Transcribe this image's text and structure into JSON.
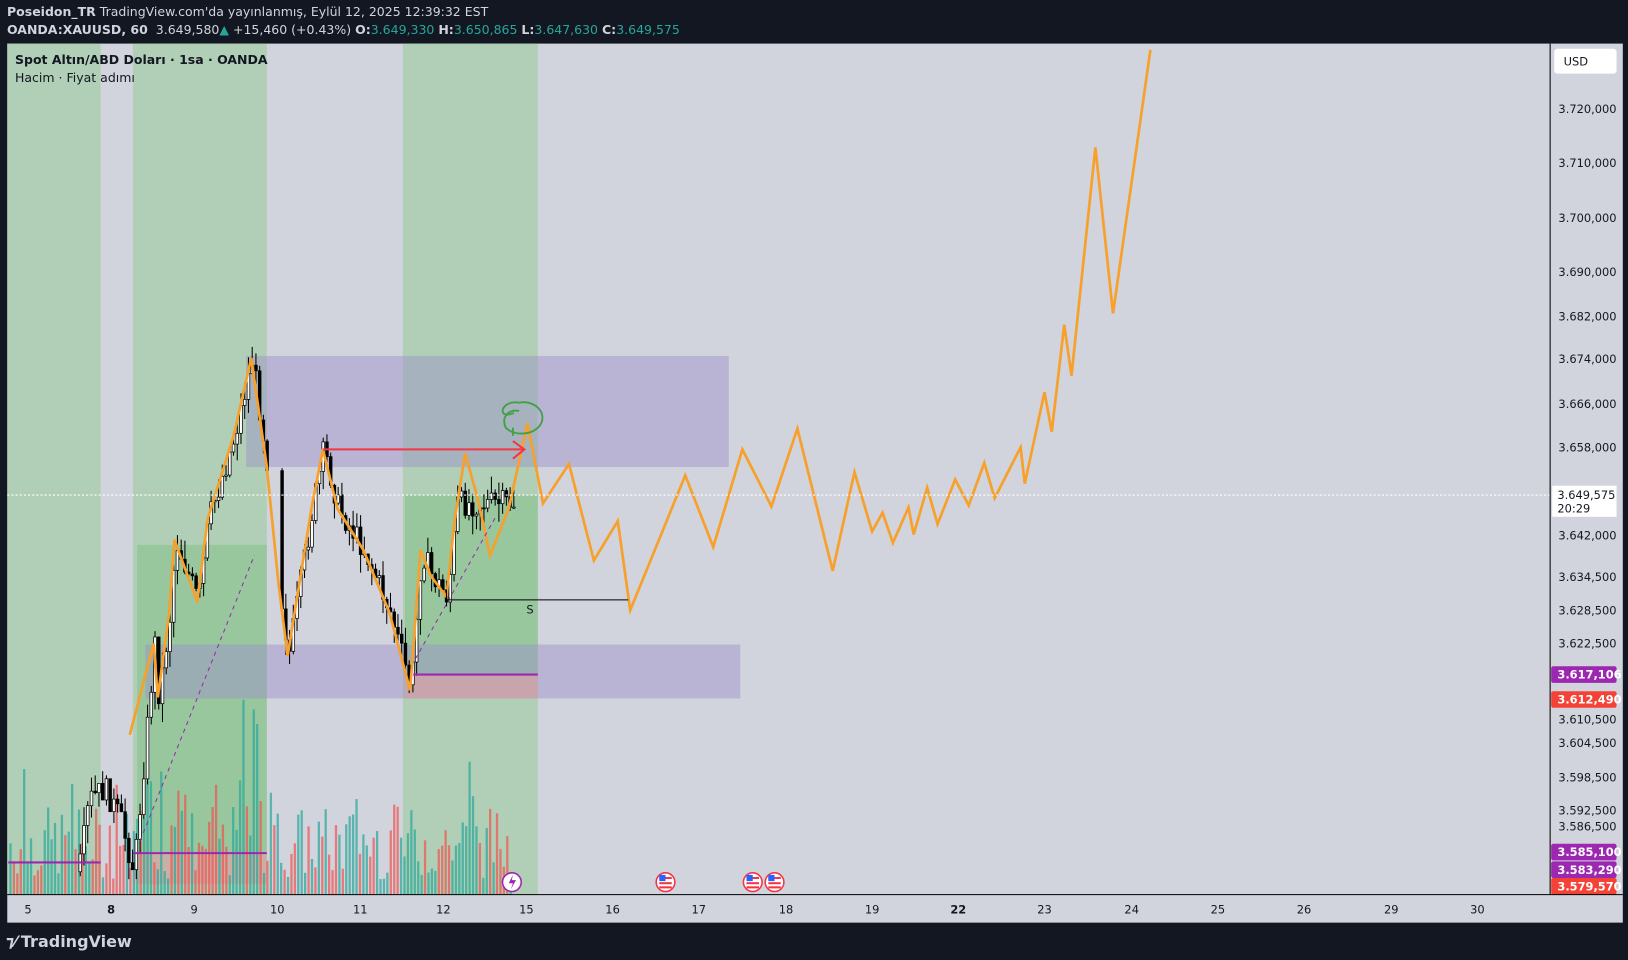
{
  "header": {
    "author": "Poseidon_TR",
    "published": "TradingView.com'da yayınlanmış, Eylül 12, 2025 12:39:32 EST"
  },
  "ticker": {
    "symbol": "OANDA:XAUUSD, 60",
    "last": "3.649,580",
    "change": "+15,460 (+0.43%)",
    "o_label": "O:",
    "open": "3.649,330",
    "h_label": "H:",
    "high": "3.650,865",
    "l_label": "L:",
    "low": "3.647,630",
    "c_label": "C:",
    "close": "3.649,575"
  },
  "legend": {
    "title": "Spot Altın/ABD Doları · 1sa · OANDA",
    "indicators": "Hacim · Fiyat adımı"
  },
  "price_axis": {
    "currency": "USD",
    "ticks": [
      "3.720,000",
      "3.710,000",
      "3.700,000",
      "3.690,000",
      "3.682,000",
      "3.674,000",
      "3.666,000",
      "3.658,000",
      "3.642,000",
      "3.634,500",
      "3.628,500",
      "3.622,500",
      "3.610,500",
      "3.604,500",
      "3.598,500",
      "3.592,500",
      "3.586,500"
    ],
    "current_price": "3.649,575",
    "countdown": "20:29",
    "badges": [
      {
        "value": "3.617,106",
        "color": "#9c27b0"
      },
      {
        "value": "3.612,490",
        "color": "#f44336"
      },
      {
        "value": "3.585,100",
        "color": "#9c27b0"
      },
      {
        "value": "3.583,290",
        "color": "#9c27b0"
      },
      {
        "value": "3.579,570",
        "color": "#f44336"
      }
    ]
  },
  "time_axis": {
    "ticks": [
      "5",
      "8",
      "9",
      "10",
      "11",
      "12",
      "15",
      "16",
      "17",
      "18",
      "19",
      "22",
      "23",
      "24",
      "25",
      "26",
      "29",
      "30"
    ],
    "bold": [
      "8",
      "22"
    ]
  },
  "annotations": {
    "support_label": "S"
  },
  "events": [
    "lightning-icon",
    "us-flag-icon",
    "us-flag-icon",
    "us-flag-icon"
  ],
  "colors": {
    "up": "#26a69a",
    "down": "#ef5350",
    "projection": "#f7a02b",
    "zone": "#9c8ec9",
    "bg": "#d1d4dc"
  },
  "brand": "TradingView"
}
